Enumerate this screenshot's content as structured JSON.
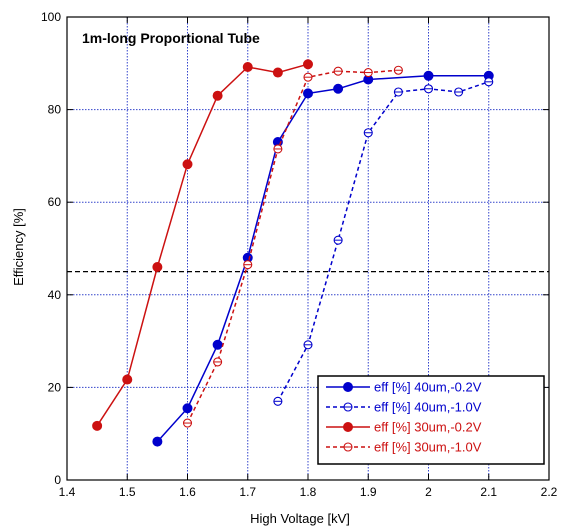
{
  "chart_data": {
    "type": "line",
    "title": "1m-long  Proportional  Tube",
    "xlabel": "High Voltage [kV]",
    "ylabel": "Efficiency [%]",
    "xlim": [
      1.4,
      2.2
    ],
    "ylim": [
      0,
      100
    ],
    "x_ticks": [
      1.4,
      1.5,
      1.6,
      1.7,
      1.8,
      1.9,
      2.0,
      2.1,
      2.2
    ],
    "x_tick_labels": [
      "1.4",
      "1.5",
      "1.6",
      "1.7",
      "1.8",
      "1.9",
      "2",
      "2.1",
      "2.2"
    ],
    "y_ticks": [
      0,
      20,
      40,
      60,
      80,
      100
    ],
    "y_tick_labels": [
      "0",
      "20",
      "40",
      "60",
      "80",
      "100"
    ],
    "grid": true,
    "reference_line": {
      "y": 45,
      "color": "#000000",
      "style": "dashed"
    },
    "legend_position": "bottom-right",
    "series": [
      {
        "name": "eff [%] 40um,-0.2V",
        "color": "#0000cc",
        "line_style": "solid",
        "marker": "filled-circle",
        "x": [
          1.55,
          1.6,
          1.65,
          1.7,
          1.75,
          1.8,
          1.85,
          1.9,
          2.0,
          2.1
        ],
        "y": [
          8.3,
          15.5,
          29.2,
          48.0,
          73.0,
          83.5,
          84.5,
          86.5,
          87.3,
          87.3
        ]
      },
      {
        "name": "eff [%] 40um,-1.0V",
        "color": "#0000cc",
        "line_style": "dashed",
        "marker": "open-circle",
        "x": [
          1.75,
          1.8,
          1.85,
          1.9,
          1.95,
          2.0,
          2.05,
          2.1
        ],
        "y": [
          17.0,
          29.2,
          51.8,
          75.0,
          83.8,
          84.5,
          83.8,
          86.0
        ]
      },
      {
        "name": "eff [%] 30um,-0.2V",
        "color": "#cc1111",
        "line_style": "solid",
        "marker": "filled-circle",
        "x": [
          1.45,
          1.5,
          1.55,
          1.6,
          1.65,
          1.7,
          1.75,
          1.8
        ],
        "y": [
          11.7,
          21.7,
          46.0,
          68.2,
          83.0,
          89.2,
          88.0,
          89.8
        ]
      },
      {
        "name": "eff [%] 30um,-1.0V",
        "color": "#cc1111",
        "line_style": "dashed",
        "marker": "open-circle",
        "x": [
          1.6,
          1.65,
          1.7,
          1.75,
          1.8,
          1.85,
          1.9,
          1.95
        ],
        "y": [
          12.3,
          25.5,
          46.5,
          71.5,
          87.0,
          88.3,
          88.0,
          88.5
        ]
      }
    ]
  }
}
